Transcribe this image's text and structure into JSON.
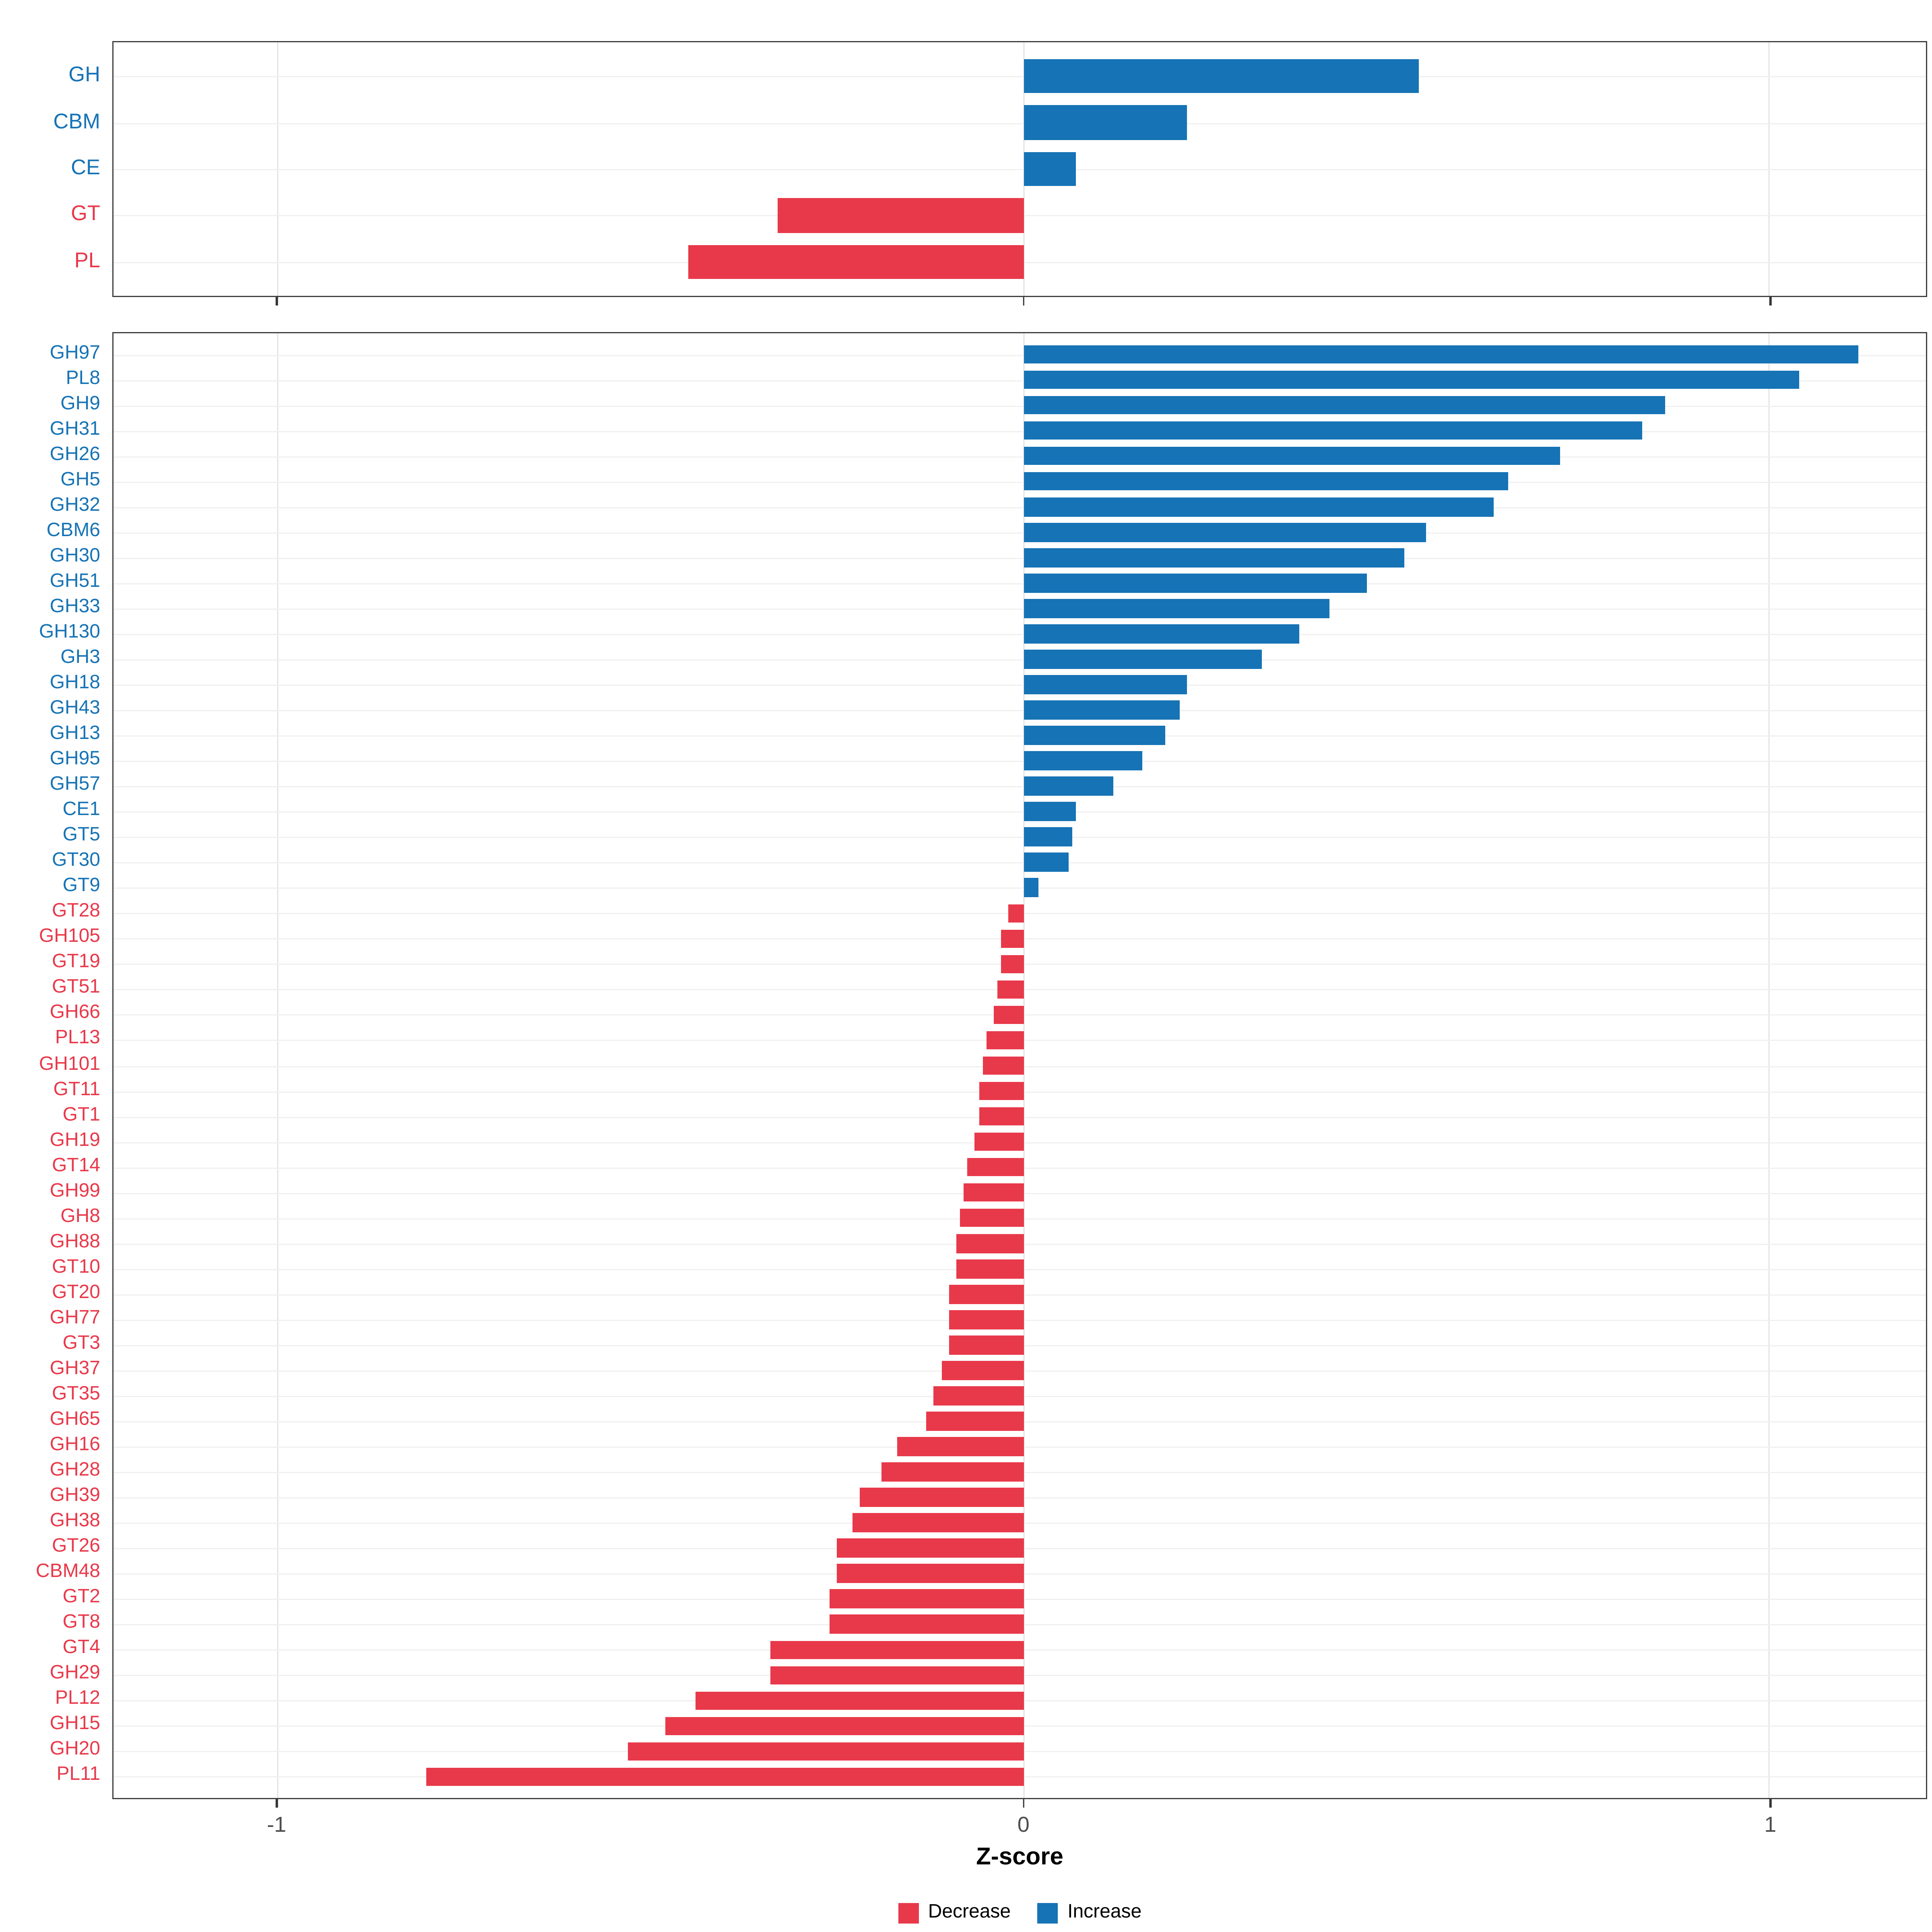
{
  "chart_data": {
    "type": "bar",
    "orientation": "horizontal",
    "title": "",
    "xlabel": "Z-score",
    "ylabel": "",
    "xlim": [
      -1.22,
      1.21
    ],
    "grid": true,
    "legend_position": "bottom",
    "x_ticks": [
      {
        "value": -1,
        "label": "-1"
      },
      {
        "value": 0,
        "label": "0"
      },
      {
        "value": 1,
        "label": "1"
      }
    ],
    "colors": {
      "increase": "#1673B5",
      "decrease": "#E8394A"
    },
    "legend": [
      {
        "label": "Decrease",
        "color": "#E8394A"
      },
      {
        "label": "Increase",
        "color": "#1673B5"
      }
    ],
    "panels": [
      {
        "name": "classes",
        "rows": [
          {
            "label": "GH",
            "value": 0.53
          },
          {
            "label": "CBM",
            "value": 0.22
          },
          {
            "label": "CE",
            "value": 0.07
          },
          {
            "label": "GT",
            "value": -0.33
          },
          {
            "label": "PL",
            "value": -0.45
          }
        ]
      },
      {
        "name": "families",
        "rows": [
          {
            "label": "GH97",
            "value": 1.12
          },
          {
            "label": "PL8",
            "value": 1.04
          },
          {
            "label": "GH9",
            "value": 0.86
          },
          {
            "label": "GH31",
            "value": 0.83
          },
          {
            "label": "GH26",
            "value": 0.72
          },
          {
            "label": "GH5",
            "value": 0.65
          },
          {
            "label": "GH32",
            "value": 0.63
          },
          {
            "label": "CBM6",
            "value": 0.54
          },
          {
            "label": "GH30",
            "value": 0.51
          },
          {
            "label": "GH51",
            "value": 0.46
          },
          {
            "label": "GH33",
            "value": 0.41
          },
          {
            "label": "GH130",
            "value": 0.37
          },
          {
            "label": "GH3",
            "value": 0.32
          },
          {
            "label": "GH18",
            "value": 0.22
          },
          {
            "label": "GH43",
            "value": 0.21
          },
          {
            "label": "GH13",
            "value": 0.19
          },
          {
            "label": "GH95",
            "value": 0.16
          },
          {
            "label": "GH57",
            "value": 0.12
          },
          {
            "label": "CE1",
            "value": 0.07
          },
          {
            "label": "GT5",
            "value": 0.065
          },
          {
            "label": "GT30",
            "value": 0.06
          },
          {
            "label": "GT9",
            "value": 0.02
          },
          {
            "label": "GT28",
            "value": -0.02
          },
          {
            "label": "GH105",
            "value": -0.03
          },
          {
            "label": "GT19",
            "value": -0.03
          },
          {
            "label": "GT51",
            "value": -0.035
          },
          {
            "label": "GH66",
            "value": -0.04
          },
          {
            "label": "PL13",
            "value": -0.05
          },
          {
            "label": "GH101",
            "value": -0.055
          },
          {
            "label": "GT11",
            "value": -0.06
          },
          {
            "label": "GT1",
            "value": -0.06
          },
          {
            "label": "GH19",
            "value": -0.065
          },
          {
            "label": "GT14",
            "value": -0.075
          },
          {
            "label": "GH99",
            "value": -0.08
          },
          {
            "label": "GH8",
            "value": -0.085
          },
          {
            "label": "GH88",
            "value": -0.09
          },
          {
            "label": "GT10",
            "value": -0.09
          },
          {
            "label": "GT20",
            "value": -0.1
          },
          {
            "label": "GH77",
            "value": -0.1
          },
          {
            "label": "GT3",
            "value": -0.1
          },
          {
            "label": "GH37",
            "value": -0.11
          },
          {
            "label": "GT35",
            "value": -0.12
          },
          {
            "label": "GH65",
            "value": -0.13
          },
          {
            "label": "GH16",
            "value": -0.17
          },
          {
            "label": "GH28",
            "value": -0.19
          },
          {
            "label": "GH39",
            "value": -0.22
          },
          {
            "label": "GH38",
            "value": -0.23
          },
          {
            "label": "GT26",
            "value": -0.25
          },
          {
            "label": "CBM48",
            "value": -0.25
          },
          {
            "label": "GT2",
            "value": -0.26
          },
          {
            "label": "GT8",
            "value": -0.26
          },
          {
            "label": "GT4",
            "value": -0.34
          },
          {
            "label": "GH29",
            "value": -0.34
          },
          {
            "label": "PL12",
            "value": -0.44
          },
          {
            "label": "GH15",
            "value": -0.48
          },
          {
            "label": "GH20",
            "value": -0.53
          },
          {
            "label": "PL11",
            "value": -0.8
          }
        ]
      }
    ]
  }
}
